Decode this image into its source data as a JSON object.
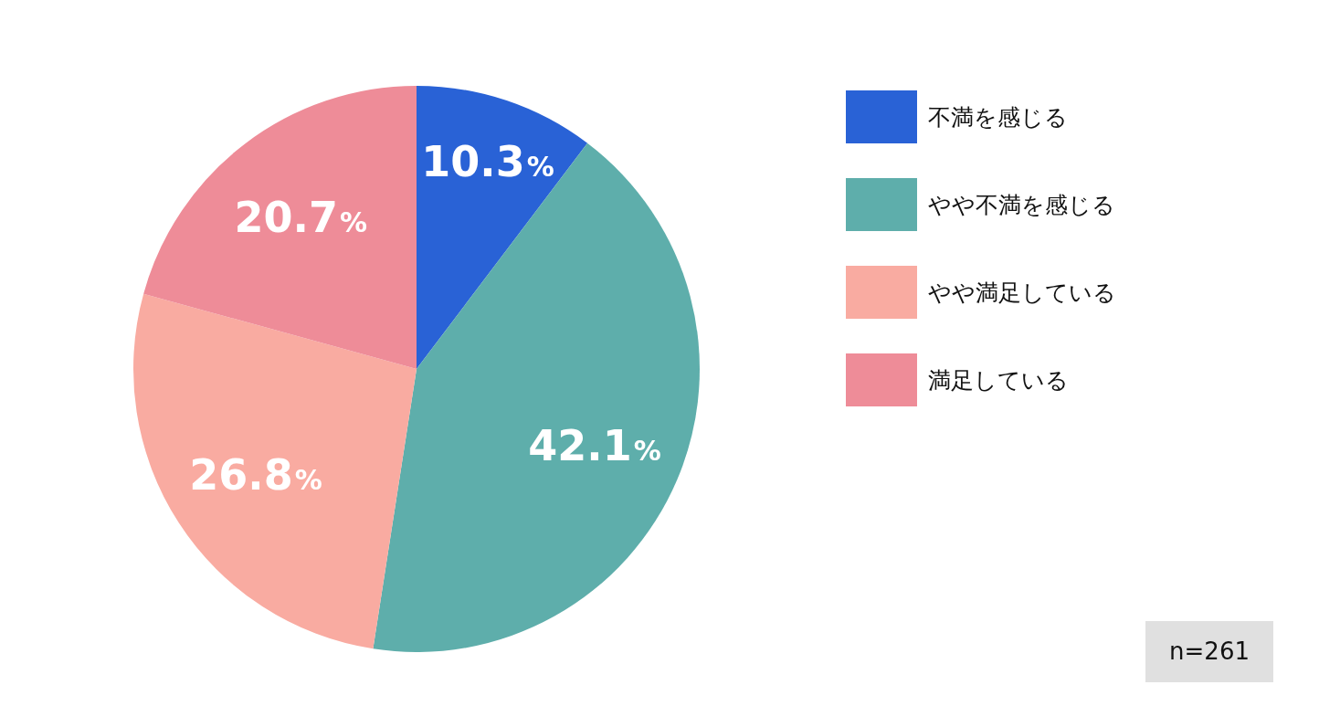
{
  "chart_data": {
    "type": "pie",
    "categories": [
      "不満を感じる",
      "やや不満を感じる",
      "やや満足している",
      "満足している"
    ],
    "values": [
      10.3,
      42.1,
      26.8,
      20.7
    ],
    "colors": [
      "#2962d6",
      "#5eaeab",
      "#f9aba1",
      "#ee8c98"
    ],
    "value_labels": [
      "10.3%",
      "42.1%",
      "26.8%",
      "20.7%"
    ],
    "legend": "right",
    "annotations": [
      "n=261"
    ]
  }
}
